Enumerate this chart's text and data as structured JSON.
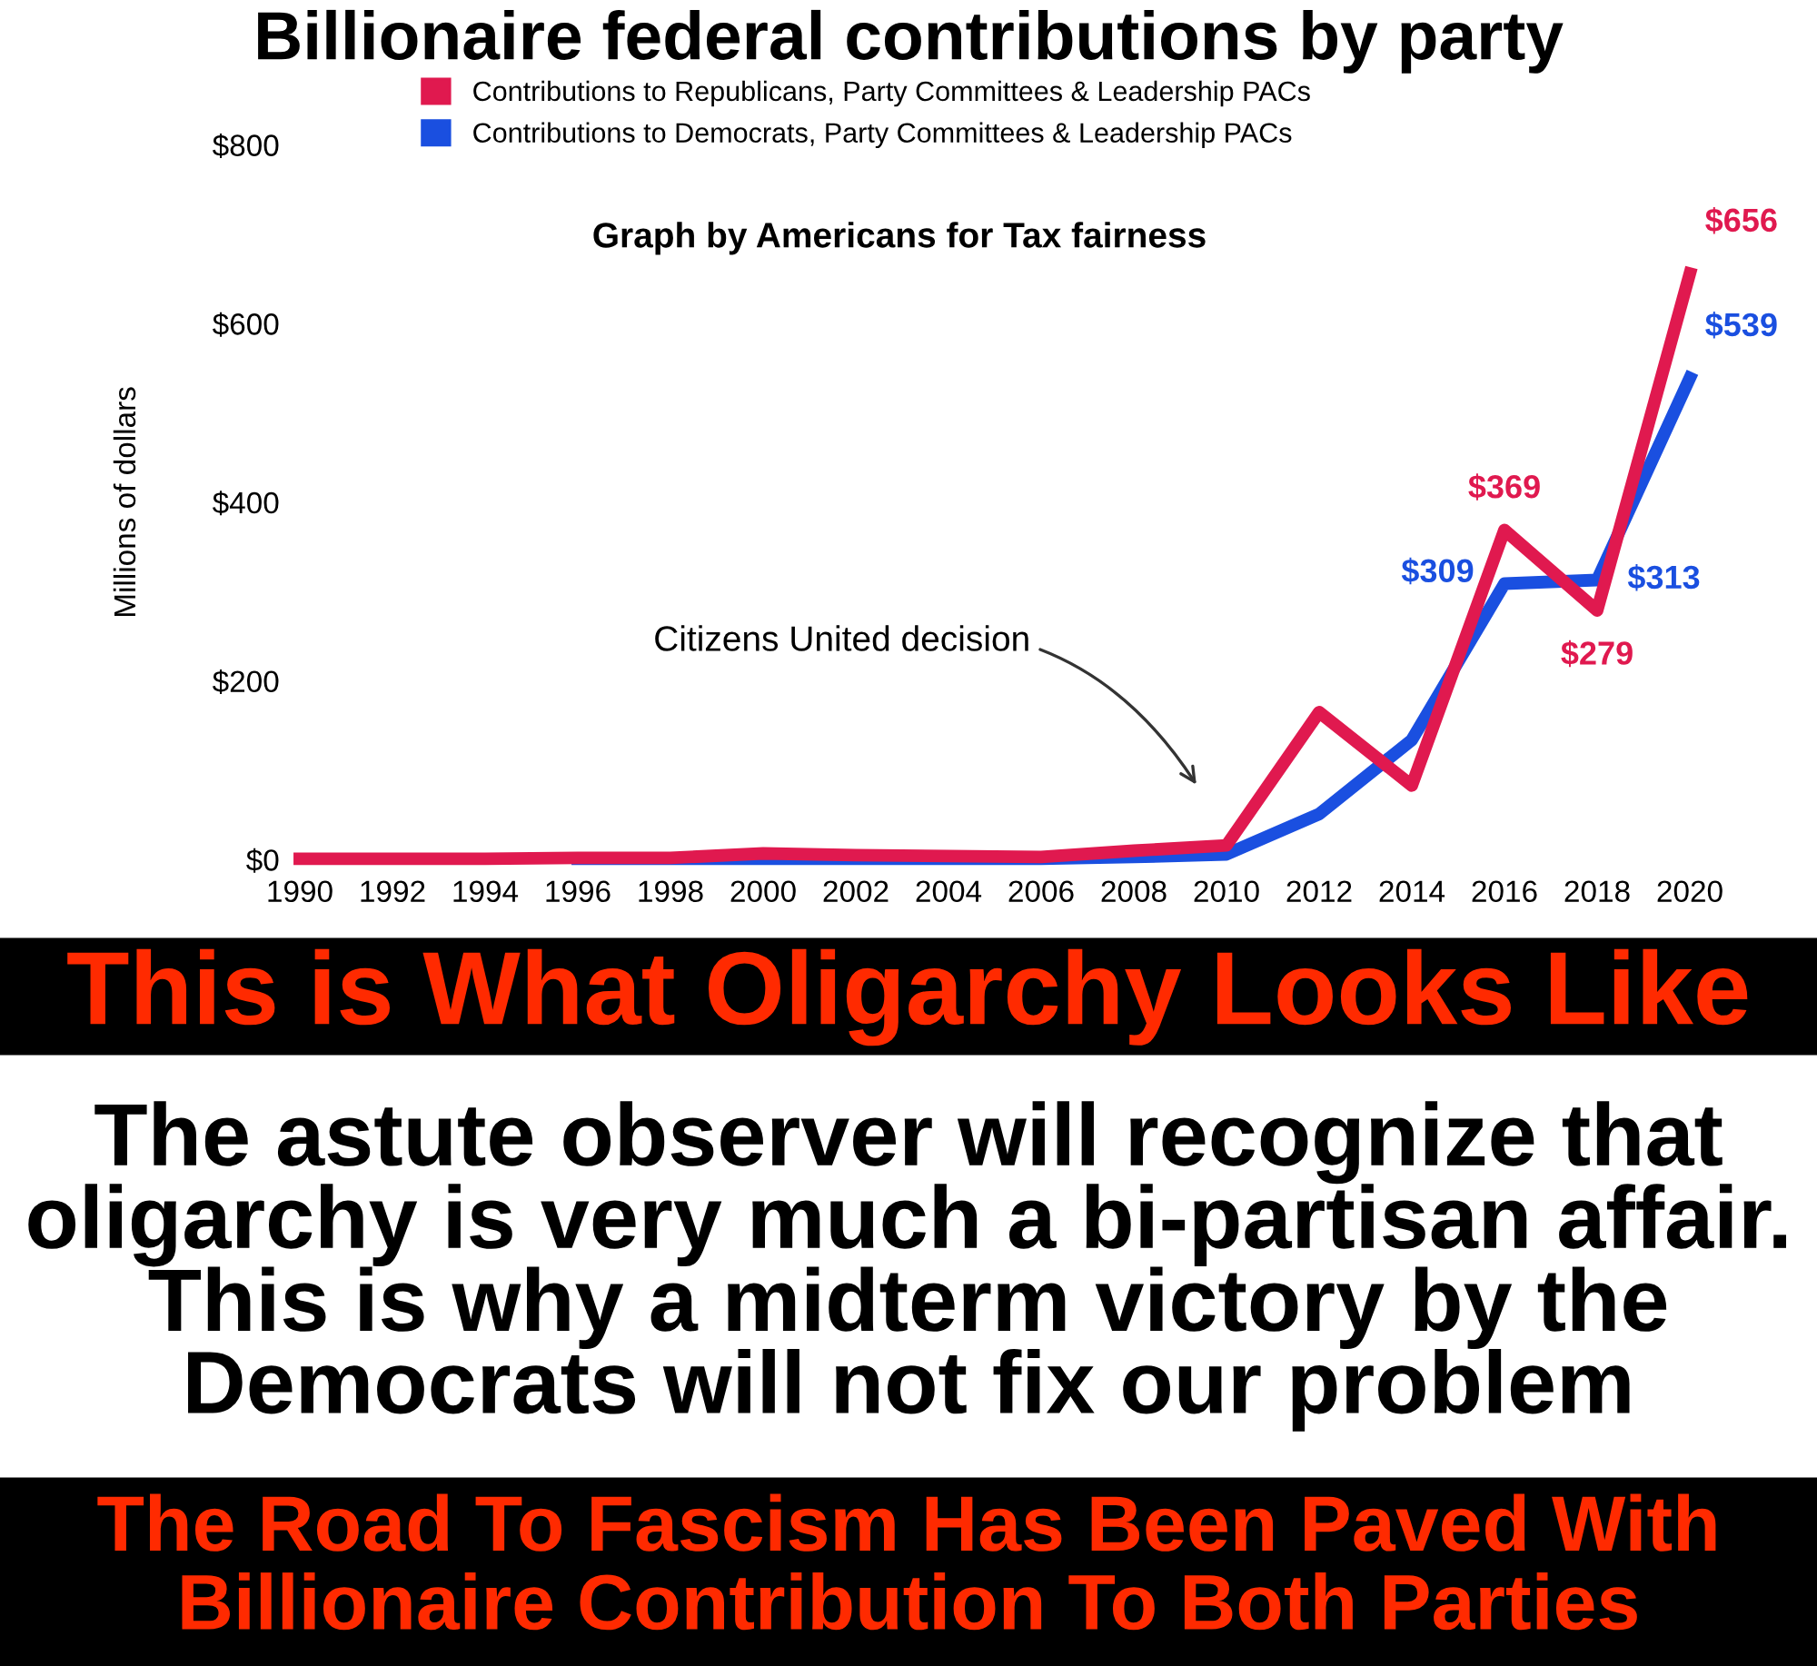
{
  "chart_data": {
    "type": "line",
    "title": "Billionaire federal contributions by party",
    "ylabel": "Millions of dollars",
    "x": [
      1990,
      1992,
      1994,
      1996,
      1998,
      2000,
      2002,
      2004,
      2006,
      2008,
      2010,
      2012,
      2014,
      2016,
      2018,
      2020
    ],
    "series": [
      {
        "name": "Contributions to Republicans, Party Committees & Leadership PACs",
        "color": "#e0194f",
        "values": [
          1,
          1,
          1,
          2,
          2,
          7,
          5,
          4,
          3,
          10,
          16,
          165,
          83,
          369,
          279,
          656
        ],
        "value_labels": [
          null,
          null,
          null,
          null,
          null,
          null,
          null,
          null,
          null,
          null,
          null,
          null,
          null,
          "$369",
          "$279",
          "$656"
        ]
      },
      {
        "name": "Contributions to Democrats, Party Committees & Leadership PACs",
        "color": "#1a4fe0",
        "values": [
          null,
          null,
          null,
          1,
          1,
          1,
          1,
          1,
          1,
          3,
          6,
          51,
          134,
          309,
          313,
          539
        ],
        "value_labels": [
          null,
          null,
          null,
          null,
          null,
          null,
          null,
          null,
          null,
          null,
          null,
          null,
          null,
          "$309",
          "$313",
          "$539"
        ]
      }
    ],
    "xlim": [
      1990,
      2020
    ],
    "xticks": [
      1990,
      1992,
      1994,
      1996,
      1998,
      2000,
      2002,
      2004,
      2006,
      2008,
      2010,
      2012,
      2014,
      2016,
      2018,
      2020
    ],
    "ylim": [
      0,
      800
    ],
    "yticks": [
      {
        "value": 0,
        "label": "$0"
      },
      {
        "value": 200,
        "label": "$200"
      },
      {
        "value": 400,
        "label": "$400"
      },
      {
        "value": 600,
        "label": "$600"
      },
      {
        "value": 800,
        "label": "$800"
      }
    ],
    "grid": false,
    "legend": "top",
    "marker": "none",
    "line_style": "solid",
    "annotations": [
      "Graph by Americans for Tax fairness",
      "Citizens United decision",
      "This is What Oligarchy Looks Like",
      "The astute observer will recognize that oligarchy is very much a bi-partisan affair. This is why a midterm victory by the Democrats will not fix our problem",
      "The Road To Fascism Has Been Paved With Billionaire Contribution To Both Parties"
    ]
  }
}
